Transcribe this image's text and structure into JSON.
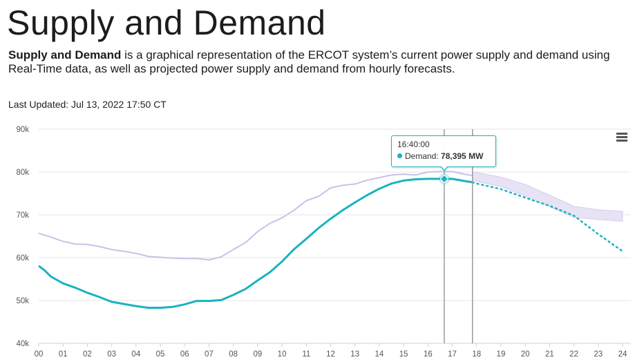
{
  "page": {
    "title": "Supply and Demand",
    "intro_bold": "Supply and Demand",
    "intro_rest": " is a graphical representation of the ERCOT system’s current power supply and demand using Real-Time data, as well as projected power supply and demand from hourly forecasts.",
    "last_updated": "Last Updated: Jul 13, 2022 17:50 CT"
  },
  "colors": {
    "demand": "#19b3c0",
    "supply": "#c9c0e6",
    "supply_band": "#e8e2f5",
    "grid": "#e6e6e6",
    "cursor_line": "#9a9a9a"
  },
  "tooltip": {
    "time": "16:40:00",
    "series": "Demand",
    "value": "78,395 MW",
    "dot_color": "#19b3c0"
  },
  "chart_data": {
    "type": "line",
    "title": "",
    "xlabel": "",
    "ylabel": "",
    "x_unit": "hour of day",
    "xlim": [
      0,
      24
    ],
    "ylim": [
      40000,
      90000
    ],
    "y_ticks": [
      40000,
      50000,
      60000,
      70000,
      80000,
      90000
    ],
    "y_tick_labels": [
      "40k",
      "50k",
      "60k",
      "70k",
      "80k",
      "90k"
    ],
    "x_ticks": [
      0,
      1,
      2,
      3,
      4,
      5,
      6,
      7,
      8,
      9,
      10,
      11,
      12,
      13,
      14,
      15,
      16,
      17,
      18,
      19,
      20,
      21,
      22,
      23,
      24
    ],
    "x_tick_labels": [
      "00",
      "01",
      "02",
      "03",
      "04",
      "05",
      "06",
      "07",
      "08",
      "09",
      "10",
      "11",
      "12",
      "13",
      "14",
      "15",
      "16",
      "17",
      "18",
      "19",
      "20",
      "21",
      "22",
      "23",
      "24"
    ],
    "grid": true,
    "legend": "none",
    "vertical_markers": [
      16.67,
      17.83
    ],
    "highlight_point": {
      "x": 16.67,
      "y": 78395
    },
    "series": [
      {
        "style": "actual",
        "color": "#c9c0e6",
        "x": [
          0,
          0.5,
          1,
          1.5,
          2,
          2.5,
          3,
          3.5,
          4,
          4.5,
          5,
          5.5,
          6,
          6.5,
          7,
          7.5,
          8,
          8.5,
          9,
          9.5,
          10,
          10.5,
          11,
          11.5,
          12,
          12.5,
          13,
          13.5,
          14,
          14.5,
          15,
          15.5,
          16,
          16.5,
          17,
          17.5,
          17.83
        ],
        "y": [
          65700,
          64800,
          63800,
          63200,
          63100,
          62600,
          61900,
          61500,
          61000,
          60300,
          60100,
          59900,
          59800,
          59800,
          59500,
          60200,
          61900,
          63500,
          66100,
          68000,
          69300,
          71100,
          73300,
          74300,
          76300,
          76900,
          77200,
          78100,
          78700,
          79300,
          79500,
          79300,
          80000,
          80100,
          80100,
          79500,
          79200
        ]
      },
      {
        "style": "forecast-band",
        "color": "#e8e2f5",
        "x": [
          17.83,
          18,
          19,
          20,
          21,
          22,
          23,
          24
        ],
        "y_upper": [
          80000,
          79900,
          78800,
          77100,
          74600,
          72000,
          71200,
          70800
        ],
        "y_lower": [
          78000,
          77800,
          76600,
          74400,
          71900,
          69400,
          68900,
          68500
        ]
      },
      {
        "style": "actual",
        "name": "Demand",
        "color": "#19b3c0",
        "x": [
          0,
          0.25,
          0.5,
          1,
          1.5,
          2,
          2.5,
          3,
          3.5,
          4,
          4.5,
          5,
          5.5,
          6,
          6.5,
          7,
          7.5,
          8,
          8.5,
          9,
          9.5,
          10,
          10.5,
          11,
          11.5,
          12,
          12.5,
          13,
          13.5,
          14,
          14.5,
          15,
          15.5,
          16,
          16.5,
          16.67,
          17,
          17.5,
          17.83
        ],
        "y": [
          58100,
          57000,
          55600,
          54000,
          53000,
          51800,
          50800,
          49700,
          49200,
          48700,
          48300,
          48300,
          48500,
          49100,
          49900,
          49900,
          50100,
          51300,
          52700,
          54700,
          56600,
          59100,
          62000,
          64400,
          66900,
          69100,
          71100,
          72900,
          74600,
          76100,
          77300,
          78000,
          78300,
          78400,
          78400,
          78395,
          78400,
          77900,
          77600
        ]
      },
      {
        "style": "forecast",
        "color": "#19b3c0",
        "x": [
          17.83,
          18,
          19,
          20,
          21,
          22,
          23,
          24
        ],
        "y": [
          77600,
          77300,
          76000,
          74000,
          72100,
          69800,
          65500,
          61500
        ]
      }
    ]
  }
}
